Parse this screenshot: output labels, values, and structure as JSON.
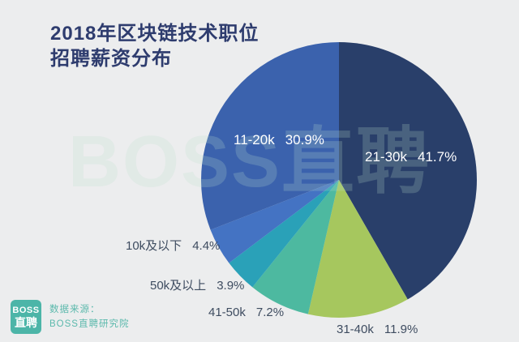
{
  "title": {
    "line1": "2018年区块链技术职位",
    "line2": "招聘薪资分布"
  },
  "watermark": "BOSS直聘",
  "footer": {
    "logo_line1": "BOSS",
    "logo_line2": "直聘",
    "source_line1": "数据来源：",
    "source_line2": "BOSS直聘研究院"
  },
  "colors": {
    "background": "#ECEDEE",
    "title_text": "#2E3C6E",
    "dark_label_text": "#3E4C60",
    "light_label_text": "#FFFFFF",
    "logo_teal": "#4CB5A8",
    "source_text_teal": "#5BB9AC",
    "watermark_mint": "#B9E0CE"
  },
  "chart_data": {
    "type": "pie",
    "title": "2018年区块链技术职位招聘薪资分布",
    "legend_position": "none",
    "start_angle_deg": 0,
    "direction": "clockwise",
    "center": [
      418,
      222
    ],
    "radius": 170,
    "slices": [
      {
        "label": "21-30k",
        "value": 41.7,
        "pct_text": "41.7%",
        "color": "#293F6A"
      },
      {
        "label": "31-40k",
        "value": 11.9,
        "pct_text": "11.9%",
        "color": "#A6C75E"
      },
      {
        "label": "41-50k",
        "value": 7.2,
        "pct_text": "7.2%",
        "color": "#4DB9A0"
      },
      {
        "label": "50k及以上",
        "value": 3.9,
        "pct_text": "3.9%",
        "color": "#2AA1B8"
      },
      {
        "label": "10k及以下",
        "value": 4.4,
        "pct_text": "4.4%",
        "color": "#4473C3"
      },
      {
        "label": "11-20k",
        "value": 30.9,
        "pct_text": "30.9%",
        "color": "#3B62AD"
      }
    ]
  }
}
